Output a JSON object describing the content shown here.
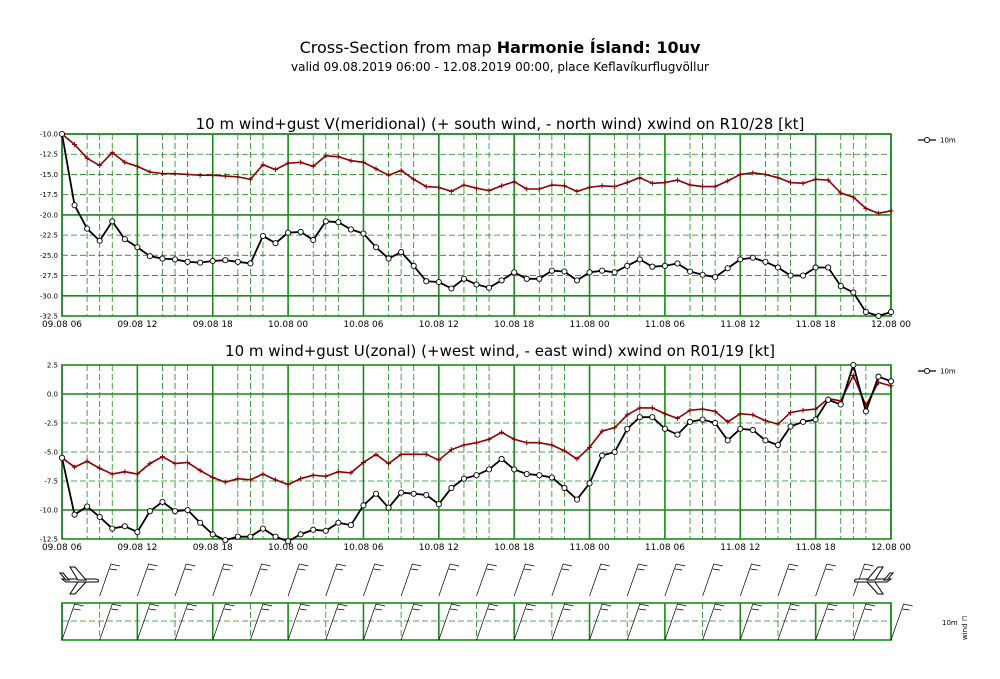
{
  "header": {
    "title_prefix": "Cross-Section from map ",
    "title_bold": "Harmonie Ísland: 10uv",
    "subtitle": "valid 09.08.2019 06:00 - 12.08.2019 00:00, place Keflavíkurflugvöllur"
  },
  "x_ticks": [
    "09.08 06",
    "09.08 12",
    "09.08 18",
    "10.08 00",
    "10.08 06",
    "10.08 12",
    "10.08 18",
    "11.08 00",
    "11.08 06",
    "11.08 12",
    "11.08 18",
    "12.08 00"
  ],
  "colors": {
    "grid": "#1a8a1a",
    "wind": "#000000",
    "gust": "#8b0000"
  },
  "panel3": {
    "legend_line1": "10m",
    "legend_line2": "wind ⊓"
  },
  "chart_data": [
    {
      "type": "line",
      "title": "10 m wind+gust V(meridional) (+ south wind, - north wind) xwind on R10/28 [kt]",
      "x_hours": [
        0,
        1,
        2,
        3,
        4,
        5,
        6,
        7,
        8,
        9,
        10,
        11,
        12,
        13,
        14,
        15,
        16,
        17,
        18,
        19,
        20,
        21,
        22,
        23,
        24,
        25,
        26,
        27,
        28,
        29,
        30,
        31,
        32,
        33,
        34,
        35,
        36,
        37,
        38,
        39,
        40,
        41,
        42,
        43,
        44,
        45,
        46,
        47,
        48,
        49,
        50,
        51,
        52,
        53,
        54,
        55,
        56,
        57,
        58,
        59,
        60,
        61,
        62,
        63,
        64,
        65,
        66
      ],
      "x_tick_hours": [
        0,
        6,
        12,
        18,
        24,
        30,
        36,
        42,
        48,
        54,
        60,
        66
      ],
      "ylim": [
        -32.5,
        -10.0
      ],
      "y_ticks": [
        "-10.0",
        "-12.5",
        "-15.0",
        "-17.5",
        "-20.0",
        "-22.5",
        "-25.0",
        "-27.5",
        "-30.0",
        "-32.5"
      ],
      "legend": "10m",
      "series": [
        {
          "name": "10m",
          "values": [
            -10.0,
            -18.8,
            -21.7,
            -23.2,
            -20.8,
            -23.0,
            -24.0,
            -25.1,
            -25.4,
            -25.5,
            -25.8,
            -25.9,
            -25.7,
            -25.6,
            -25.8,
            -26.0,
            -22.6,
            -23.5,
            -22.2,
            -22.1,
            -23.1,
            -20.8,
            -20.9,
            -21.8,
            -22.3,
            -24.0,
            -25.4,
            -24.6,
            -26.3,
            -28.2,
            -28.3,
            -29.1,
            -27.9,
            -28.6,
            -29.0,
            -28.1,
            -27.1,
            -27.9,
            -27.9,
            -26.9,
            -27.0,
            -28.1,
            -27.1,
            -26.9,
            -27.1,
            -26.3,
            -25.5,
            -26.4,
            -26.3,
            -26.0,
            -27.0,
            -27.4,
            -27.7,
            -26.6,
            -25.5,
            -25.3,
            -25.8,
            -26.5,
            -27.5,
            -27.5,
            -26.5,
            -26.5,
            -28.8,
            -29.6,
            -32.0,
            -32.5,
            -32.0
          ]
        },
        {
          "name": "",
          "values": [
            -10.0,
            -11.3,
            -13.0,
            -13.9,
            -12.3,
            -13.5,
            -14.0,
            -14.7,
            -14.9,
            -14.9,
            -15.0,
            -15.1,
            -15.1,
            -15.2,
            -15.3,
            -15.6,
            -13.8,
            -14.4,
            -13.6,
            -13.5,
            -14.0,
            -12.7,
            -12.8,
            -13.3,
            -13.5,
            -14.3,
            -15.1,
            -14.5,
            -15.6,
            -16.5,
            -16.6,
            -17.1,
            -16.3,
            -16.7,
            -17.0,
            -16.4,
            -15.9,
            -16.8,
            -16.8,
            -16.3,
            -16.4,
            -17.1,
            -16.6,
            -16.4,
            -16.5,
            -16.0,
            -15.4,
            -16.1,
            -16.0,
            -15.7,
            -16.3,
            -16.5,
            -16.5,
            -15.8,
            -15.0,
            -14.8,
            -15.0,
            -15.4,
            -16.0,
            -16.1,
            -15.6,
            -15.7,
            -17.3,
            -17.8,
            -19.2,
            -19.8,
            -19.5
          ]
        }
      ]
    },
    {
      "type": "line",
      "title": "10 m wind+gust U(zonal) (+west wind, - east wind) xwind on R01/19 [kt]",
      "x_hours": [
        0,
        1,
        2,
        3,
        4,
        5,
        6,
        7,
        8,
        9,
        10,
        11,
        12,
        13,
        14,
        15,
        16,
        17,
        18,
        19,
        20,
        21,
        22,
        23,
        24,
        25,
        26,
        27,
        28,
        29,
        30,
        31,
        32,
        33,
        34,
        35,
        36,
        37,
        38,
        39,
        40,
        41,
        42,
        43,
        44,
        45,
        46,
        47,
        48,
        49,
        50,
        51,
        52,
        53,
        54,
        55,
        56,
        57,
        58,
        59,
        60,
        61,
        62,
        63,
        64,
        65,
        66
      ],
      "x_tick_hours": [
        0,
        6,
        12,
        18,
        24,
        30,
        36,
        42,
        48,
        54,
        60,
        66
      ],
      "ylim": [
        -12.5,
        2.5
      ],
      "y_ticks": [
        "2.5",
        "0.0",
        "-2.5",
        "-5.0",
        "-7.5",
        "-10.0",
        "-12.5"
      ],
      "legend": "10m",
      "series": [
        {
          "name": "10m",
          "values": [
            -5.5,
            -10.4,
            -9.7,
            -10.6,
            -11.6,
            -11.4,
            -11.9,
            -10.1,
            -9.3,
            -10.1,
            -10.0,
            -11.1,
            -12.1,
            -12.6,
            -12.3,
            -12.3,
            -11.6,
            -12.3,
            -12.7,
            -12.1,
            -11.7,
            -11.8,
            -11.1,
            -11.3,
            -9.6,
            -8.6,
            -9.8,
            -8.5,
            -8.6,
            -8.7,
            -9.5,
            -8.1,
            -7.3,
            -7.0,
            -6.5,
            -5.6,
            -6.5,
            -6.9,
            -7.0,
            -7.2,
            -8.1,
            -9.1,
            -7.7,
            -5.3,
            -5.0,
            -3.0,
            -2.0,
            -2.0,
            -3.0,
            -3.5,
            -2.4,
            -2.2,
            -2.5,
            -4.0,
            -3.0,
            -3.1,
            -4.0,
            -4.4,
            -2.8,
            -2.4,
            -2.2,
            -0.5,
            -0.9,
            2.5,
            -1.5,
            1.5,
            1.1
          ]
        },
        {
          "name": "",
          "values": [
            -5.5,
            -6.3,
            -5.8,
            -6.4,
            -6.9,
            -6.7,
            -6.9,
            -6.0,
            -5.4,
            -6.0,
            -5.9,
            -6.6,
            -7.2,
            -7.6,
            -7.3,
            -7.4,
            -6.9,
            -7.4,
            -7.8,
            -7.3,
            -7.0,
            -7.1,
            -6.7,
            -6.8,
            -5.9,
            -5.2,
            -6.0,
            -5.2,
            -5.2,
            -5.2,
            -5.7,
            -4.8,
            -4.4,
            -4.2,
            -3.9,
            -3.3,
            -3.9,
            -4.2,
            -4.2,
            -4.4,
            -4.9,
            -5.6,
            -4.6,
            -3.2,
            -2.9,
            -1.8,
            -1.2,
            -1.2,
            -1.7,
            -2.1,
            -1.4,
            -1.3,
            -1.5,
            -2.4,
            -1.7,
            -1.8,
            -2.3,
            -2.6,
            -1.6,
            -1.4,
            -1.3,
            -0.4,
            -0.6,
            1.6,
            -1.0,
            1.0,
            0.7
          ]
        }
      ]
    }
  ]
}
